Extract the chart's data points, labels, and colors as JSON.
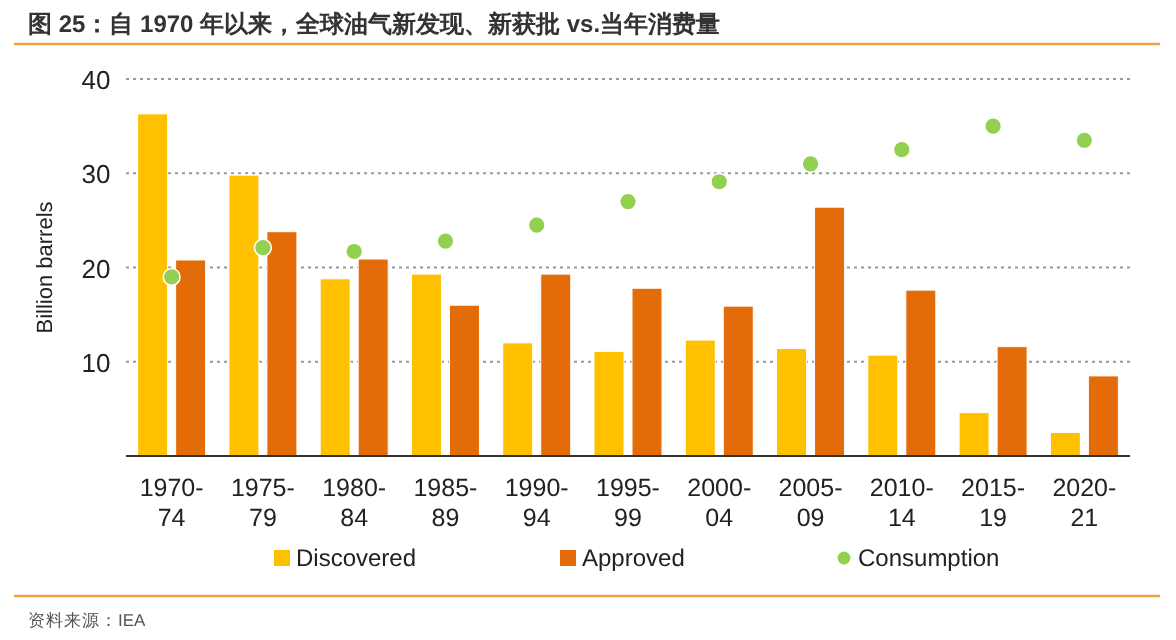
{
  "chart_data": {
    "type": "bar",
    "title": "图 25：自 1970 年以来，全球油气新发现、新获批 vs.当年消费量",
    "ylabel": "Billion barrels",
    "categories": [
      "1970-74",
      "1975-79",
      "1980-84",
      "1985-89",
      "1990-94",
      "1995-99",
      "2000-04",
      "2005-09",
      "2010-14",
      "2015-19",
      "2020-21"
    ],
    "series": [
      {
        "name": "Discovered",
        "color": "#ffc000",
        "values": [
          36.3,
          29.8,
          18.8,
          19.3,
          12.0,
          11.1,
          12.3,
          11.4,
          10.7,
          4.6,
          2.5
        ]
      },
      {
        "name": "Approved",
        "color": "#e36c09",
        "values": [
          20.8,
          23.8,
          20.9,
          16.0,
          19.3,
          17.8,
          15.9,
          26.4,
          17.6,
          11.6,
          8.5
        ]
      },
      {
        "name": "Consumption",
        "type": "scatter",
        "color": "#92d050",
        "values": [
          19.0,
          22.1,
          21.7,
          22.8,
          24.5,
          27.0,
          29.1,
          31.0,
          32.5,
          35.0,
          33.5
        ]
      }
    ],
    "ylim": [
      0,
      40
    ],
    "yticks": [
      10,
      20,
      30,
      40
    ],
    "grid": "y",
    "legend": "bottom",
    "marker": "circle",
    "annotations": [
      "资料来源：IEA"
    ]
  }
}
